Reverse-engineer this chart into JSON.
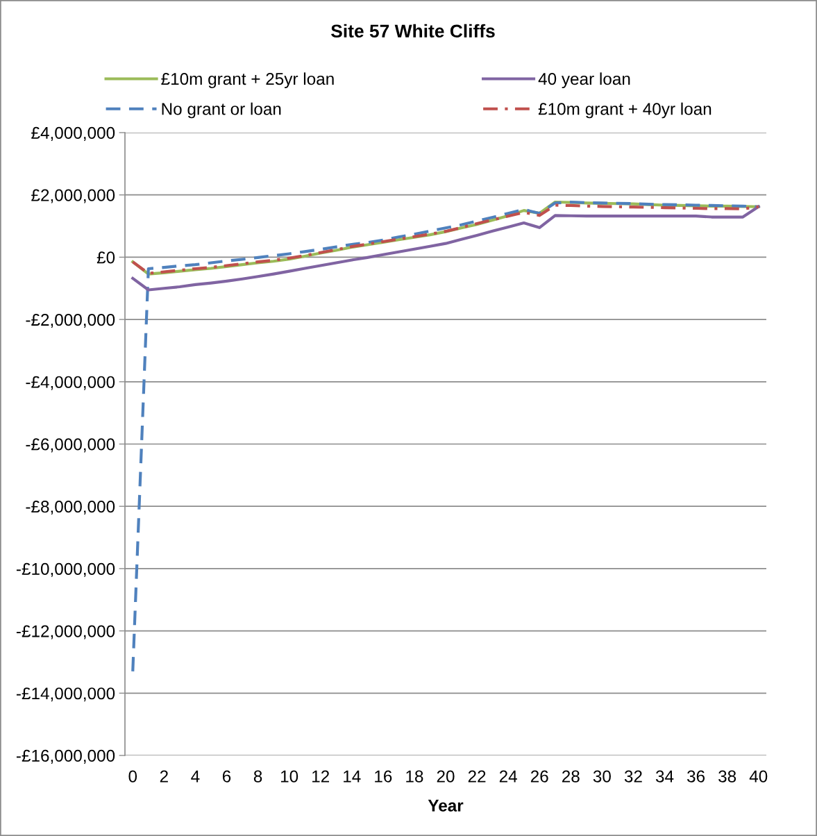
{
  "chart_data": {
    "type": "line",
    "title": "Site 57 White Cliffs",
    "xlabel": "Year",
    "categories": [
      "0",
      null,
      "2",
      null,
      "4",
      null,
      "6",
      null,
      "8",
      null,
      "10",
      null,
      "12",
      null,
      "14",
      null,
      "16",
      null,
      "18",
      null,
      "20",
      null,
      "22",
      null,
      "24",
      null,
      "26",
      null,
      "28",
      null,
      "30",
      null,
      "32",
      null,
      "34",
      null,
      "36",
      null,
      "38",
      null,
      "40"
    ],
    "series": [
      {
        "name": "£10m grant + 25yr loan",
        "color": "#9bbb59",
        "line_style": "solid",
        "values": [
          -150000,
          -540000,
          -500000,
          -450000,
          -400000,
          -360000,
          -300000,
          -240000,
          -180000,
          -130000,
          -60000,
          30000,
          130000,
          220000,
          320000,
          400000,
          480000,
          560000,
          640000,
          720000,
          820000,
          940000,
          1050000,
          1190000,
          1330000,
          1500000,
          1410000,
          1770000,
          1760000,
          1740000,
          1730000,
          1720000,
          1710000,
          1690000,
          1670000,
          1660000,
          1650000,
          1640000,
          1640000,
          1630000,
          1620000
        ]
      },
      {
        "name": "No grant or loan",
        "color": "#4f81bd",
        "line_style": "dashed",
        "values": [
          -13300000,
          -370000,
          -330000,
          -280000,
          -240000,
          -180000,
          -120000,
          -70000,
          -10000,
          50000,
          110000,
          180000,
          250000,
          330000,
          410000,
          470000,
          550000,
          650000,
          740000,
          840000,
          940000,
          1040000,
          1160000,
          1280000,
          1410000,
          1530000,
          1410000,
          1740000,
          1770000,
          1750000,
          1740000,
          1730000,
          1720000,
          1700000,
          1690000,
          1680000,
          1670000,
          1660000,
          1650000,
          1640000,
          1620000
        ]
      },
      {
        "name": "40 year loan",
        "color": "#8064a2",
        "line_style": "solid",
        "values": [
          -680000,
          -1050000,
          -1000000,
          -950000,
          -880000,
          -830000,
          -770000,
          -700000,
          -620000,
          -540000,
          -450000,
          -360000,
          -270000,
          -180000,
          -90000,
          -10000,
          80000,
          170000,
          260000,
          350000,
          440000,
          570000,
          700000,
          840000,
          970000,
          1100000,
          950000,
          1340000,
          1330000,
          1320000,
          1320000,
          1320000,
          1320000,
          1320000,
          1320000,
          1320000,
          1320000,
          1290000,
          1290000,
          1290000,
          1620000
        ]
      },
      {
        "name": "£10m grant + 40yr loan",
        "color": "#c0504d",
        "line_style": "dashdot",
        "values": [
          -150000,
          -520000,
          -470000,
          -420000,
          -370000,
          -330000,
          -270000,
          -210000,
          -150000,
          -100000,
          -30000,
          50000,
          150000,
          240000,
          340000,
          420000,
          500000,
          580000,
          660000,
          740000,
          830000,
          950000,
          1080000,
          1200000,
          1320000,
          1440000,
          1340000,
          1670000,
          1660000,
          1640000,
          1630000,
          1620000,
          1610000,
          1600000,
          1590000,
          1580000,
          1570000,
          1560000,
          1560000,
          1550000,
          1620000
        ]
      }
    ],
    "ylim": [
      -16000000,
      4000000
    ],
    "yticks": [
      {
        "value": 4000000,
        "label": "£4,000,000"
      },
      {
        "value": 2000000,
        "label": "£2,000,000"
      },
      {
        "value": 0,
        "label": "£0"
      },
      {
        "value": -2000000,
        "label": "-£2,000,000"
      },
      {
        "value": -4000000,
        "label": "-£4,000,000"
      },
      {
        "value": -6000000,
        "label": "-£6,000,000"
      },
      {
        "value": -8000000,
        "label": "-£8,000,000"
      },
      {
        "value": -10000000,
        "label": "-£10,000,000"
      },
      {
        "value": -12000000,
        "label": "-£12,000,000"
      },
      {
        "value": -14000000,
        "label": "-£14,000,000"
      },
      {
        "value": -16000000,
        "label": "-£16,000,000"
      }
    ],
    "grid": "y",
    "legend": "top"
  }
}
